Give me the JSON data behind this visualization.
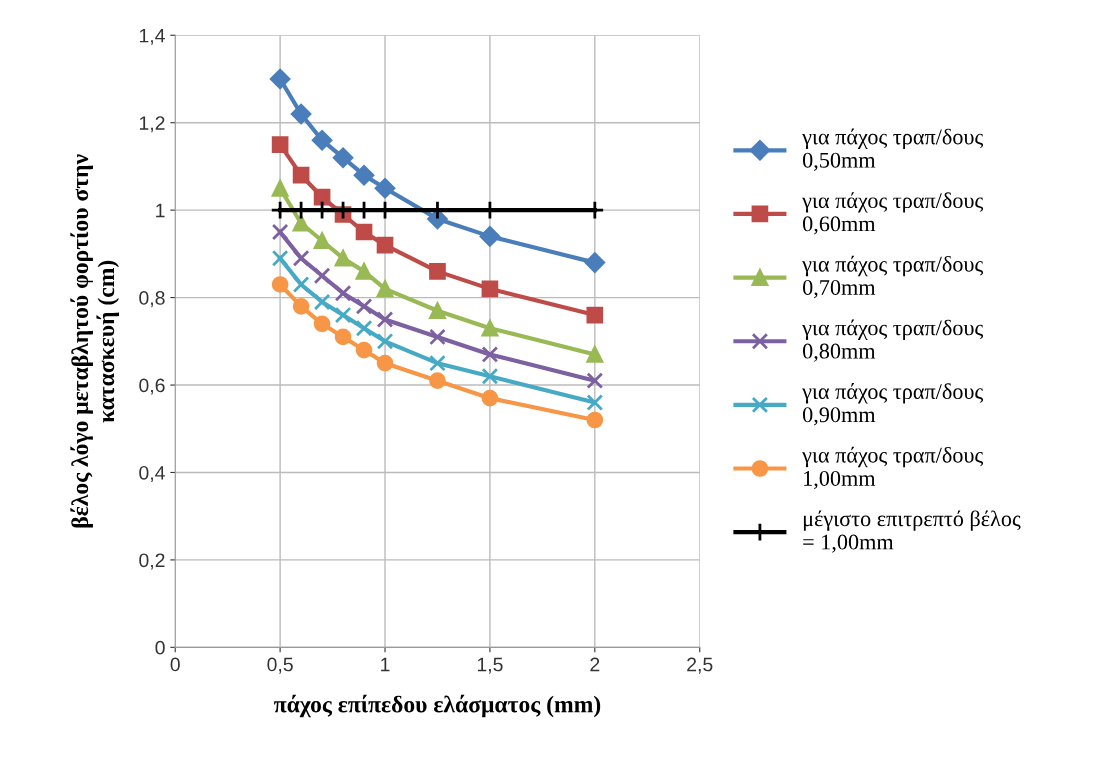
{
  "chart_data": {
    "type": "line",
    "xlabel": "πάχος επίπεδου ελάσματος (mm)",
    "ylabel": "βέλος λόγο μεταβλητού φορτίου στην\nκατασκευή (cm)",
    "x": [
      0.5,
      0.6,
      0.7,
      0.8,
      0.9,
      1.0,
      1.25,
      1.5,
      2.0
    ],
    "series": [
      {
        "name": "για πάχος τραπ/δους\n0,50mm",
        "color": "#4a7ebb",
        "marker": "diamond",
        "values": [
          1.3,
          1.22,
          1.16,
          1.12,
          1.08,
          1.05,
          0.98,
          0.94,
          0.88
        ]
      },
      {
        "name": "για πάχος τραπ/δους\n0,60mm",
        "color": "#be4b48",
        "marker": "square",
        "values": [
          1.15,
          1.08,
          1.03,
          0.99,
          0.95,
          0.92,
          0.86,
          0.82,
          0.76
        ]
      },
      {
        "name": "για πάχος τραπ/δους\n0,70mm",
        "color": "#98b954",
        "marker": "triangle",
        "values": [
          1.05,
          0.97,
          0.93,
          0.89,
          0.86,
          0.82,
          0.77,
          0.73,
          0.67
        ]
      },
      {
        "name": "για πάχος τραπ/δους\n0,80mm",
        "color": "#7d60a0",
        "marker": "cross",
        "values": [
          0.95,
          0.89,
          0.85,
          0.81,
          0.78,
          0.75,
          0.71,
          0.67,
          0.61
        ]
      },
      {
        "name": "για πάχος τραπ/δους\n0,90mm",
        "color": "#46aac5",
        "marker": "cross",
        "values": [
          0.89,
          0.83,
          0.79,
          0.76,
          0.73,
          0.7,
          0.65,
          0.62,
          0.56
        ]
      },
      {
        "name": "για πάχος τραπ/δους\n1,00mm",
        "color": "#f79646",
        "marker": "circle",
        "values": [
          0.83,
          0.78,
          0.74,
          0.71,
          0.68,
          0.65,
          0.61,
          0.57,
          0.52
        ]
      },
      {
        "name": "μέγιστο επιτρεπτό βέλος\n= 1,00mm",
        "color": "#000000",
        "marker": "plus",
        "values": [
          1,
          1,
          1,
          1,
          1,
          1,
          1,
          1,
          1
        ]
      }
    ],
    "xlim": [
      0,
      2.5
    ],
    "xticks": [
      0,
      {
        "value": 0.5,
        "label": "0,5"
      },
      1,
      {
        "value": 1.5,
        "label": "1,5"
      },
      2,
      {
        "value": 2.5,
        "label": "2,5"
      }
    ],
    "ylim": [
      0,
      1.4
    ],
    "yticks": [
      0,
      {
        "value": 0.2,
        "label": "0,2"
      },
      {
        "value": 0.4,
        "label": "0,4"
      },
      {
        "value": 0.6,
        "label": "0,6"
      },
      {
        "value": 0.8,
        "label": "0,8"
      },
      1,
      {
        "value": 1.2,
        "label": "1,2"
      },
      {
        "value": 1.4,
        "label": "1,4"
      }
    ],
    "grid": true,
    "legend": "right",
    "line_style": "solid"
  }
}
